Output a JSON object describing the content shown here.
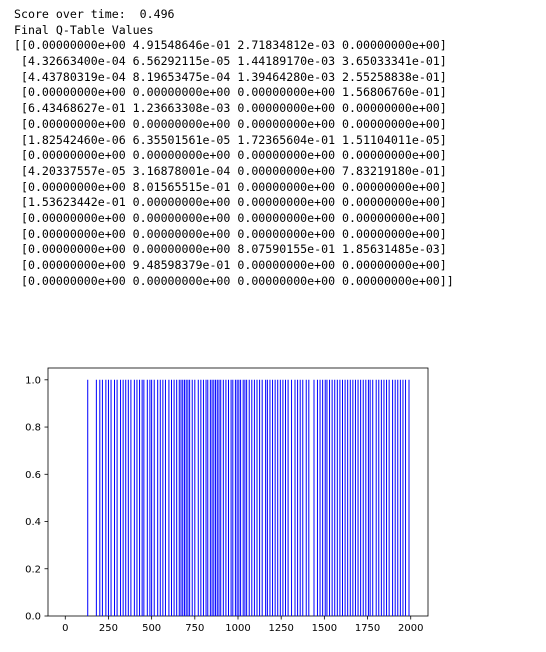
{
  "output": {
    "lines": [
      "Score over time:  0.496",
      "Final Q-Table Values",
      "[[0.00000000e+00 4.91548646e-01 2.71834812e-03 0.00000000e+00]",
      " [4.32663400e-04 6.56292115e-05 1.44189170e-03 3.65033341e-01]",
      " [4.43780319e-04 8.19653475e-04 1.39464280e-03 2.55258838e-01]",
      " [0.00000000e+00 0.00000000e+00 0.00000000e+00 1.56806760e-01]",
      " [6.43468627e-01 1.23663308e-03 0.00000000e+00 0.00000000e+00]",
      " [0.00000000e+00 0.00000000e+00 0.00000000e+00 0.00000000e+00]",
      " [1.82542460e-06 6.35501561e-05 1.72365604e-01 1.51104011e-05]",
      " [0.00000000e+00 0.00000000e+00 0.00000000e+00 0.00000000e+00]",
      " [4.20337557e-05 3.16878001e-04 0.00000000e+00 7.83219180e-01]",
      " [0.00000000e+00 8.01565515e-01 0.00000000e+00 0.00000000e+00]",
      " [1.53623442e-01 0.00000000e+00 0.00000000e+00 0.00000000e+00]",
      " [0.00000000e+00 0.00000000e+00 0.00000000e+00 0.00000000e+00]",
      " [0.00000000e+00 0.00000000e+00 0.00000000e+00 0.00000000e+00]",
      " [0.00000000e+00 0.00000000e+00 8.07590155e-01 1.85631485e-03]",
      " [0.00000000e+00 9.48598379e-01 0.00000000e+00 0.00000000e+00]",
      " [0.00000000e+00 0.00000000e+00 0.00000000e+00 0.00000000e+00]]"
    ]
  },
  "colors": {
    "bar": "#0000ff",
    "axis": "#000000",
    "background": "#ffffff"
  },
  "chart_data": {
    "type": "bar",
    "title": "",
    "xlabel": "",
    "ylabel": "",
    "xlim": [
      -100,
      2100
    ],
    "ylim": [
      0,
      1.05
    ],
    "grid": false,
    "x_ticks": [
      0,
      250,
      500,
      750,
      1000,
      1250,
      1500,
      1750,
      2000
    ],
    "x_tick_labels": [
      "0",
      "250",
      "500",
      "750",
      "1000",
      "1250",
      "1500",
      "1750",
      "2000"
    ],
    "y_ticks": [
      0.0,
      0.2,
      0.4,
      0.6,
      0.8,
      1.0
    ],
    "y_tick_labels": [
      "0.0",
      "0.2",
      "0.4",
      "0.6",
      "0.8",
      "1.0"
    ],
    "x": [
      130,
      180,
      200,
      215,
      235,
      250,
      265,
      285,
      300,
      320,
      335,
      350,
      365,
      380,
      400,
      415,
      430,
      445,
      455,
      475,
      490,
      500,
      515,
      535,
      550,
      565,
      580,
      600,
      615,
      630,
      645,
      660,
      670,
      680,
      690,
      700,
      710,
      720,
      735,
      750,
      770,
      785,
      800,
      815,
      825,
      840,
      850,
      860,
      870,
      880,
      890,
      900,
      915,
      930,
      945,
      960,
      970,
      985,
      995,
      1005,
      1015,
      1030,
      1040,
      1050,
      1065,
      1080,
      1095,
      1110,
      1125,
      1140,
      1160,
      1170,
      1185,
      1200,
      1215,
      1230,
      1245,
      1260,
      1275,
      1290,
      1310,
      1330,
      1345,
      1360,
      1375,
      1395,
      1410,
      1440,
      1460,
      1475,
      1490,
      1505,
      1515,
      1530,
      1545,
      1560,
      1575,
      1590,
      1605,
      1620,
      1635,
      1650,
      1665,
      1680,
      1695,
      1710,
      1725,
      1740,
      1755,
      1765,
      1780,
      1800,
      1815,
      1830,
      1845,
      1860,
      1875,
      1895,
      1910,
      1925,
      1940,
      1955,
      1970,
      1990
    ],
    "values": [
      1,
      1,
      1,
      1,
      1,
      1,
      1,
      1,
      1,
      1,
      1,
      1,
      1,
      1,
      1,
      1,
      1,
      1,
      1,
      1,
      1,
      1,
      1,
      1,
      1,
      1,
      1,
      1,
      1,
      1,
      1,
      1,
      1,
      1,
      1,
      1,
      1,
      1,
      1,
      1,
      1,
      1,
      1,
      1,
      1,
      1,
      1,
      1,
      1,
      1,
      1,
      1,
      1,
      1,
      1,
      1,
      1,
      1,
      1,
      1,
      1,
      1,
      1,
      1,
      1,
      1,
      1,
      1,
      1,
      1,
      1,
      1,
      1,
      1,
      1,
      1,
      1,
      1,
      1,
      1,
      1,
      1,
      1,
      1,
      1,
      1,
      1,
      1,
      1,
      1,
      1,
      1,
      1,
      1,
      1,
      1,
      1,
      1,
      1,
      1,
      1,
      1,
      1,
      1,
      1,
      1,
      1,
      1,
      1,
      1,
      1,
      1,
      1,
      1,
      1,
      1,
      1,
      1,
      1,
      1,
      1,
      1,
      1,
      1
    ]
  }
}
